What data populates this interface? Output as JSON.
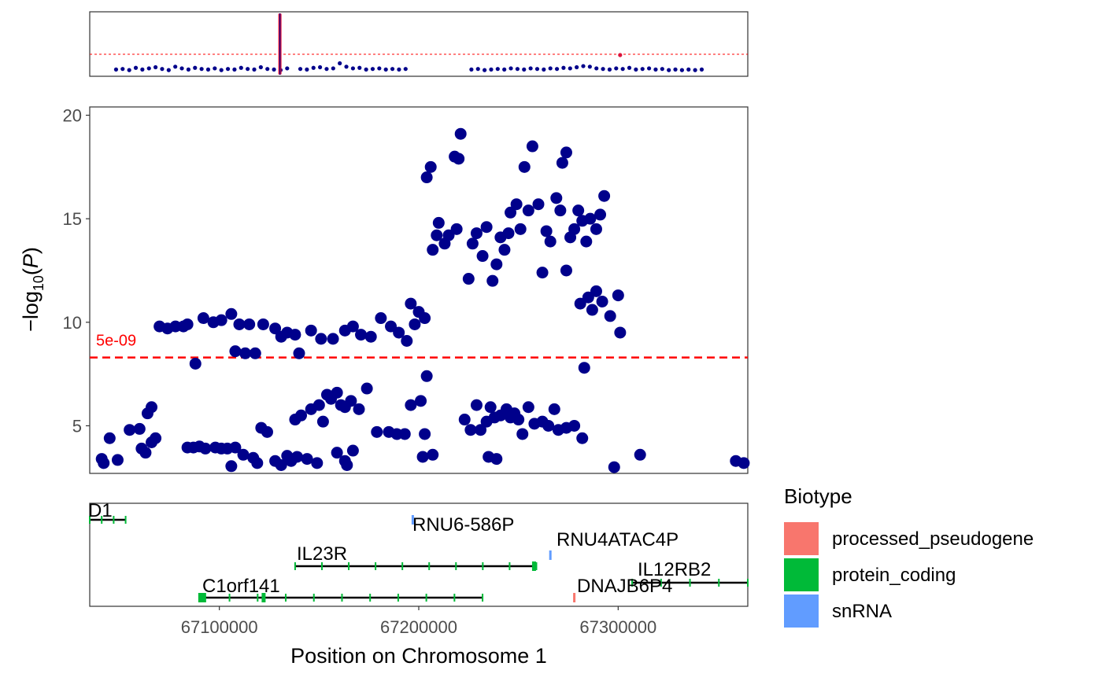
{
  "chart_data": [
    {
      "panel": "overview",
      "type": "scatter",
      "threshold": {
        "color": "#ff0000"
      },
      "point_color": "#00008b",
      "highlight_color": "#dc143c",
      "points": [
        [
          0.04,
          0.05
        ],
        [
          0.05,
          0.06
        ],
        [
          0.06,
          0.04
        ],
        [
          0.07,
          0.08
        ],
        [
          0.08,
          0.05
        ],
        [
          0.09,
          0.07
        ],
        [
          0.1,
          0.09
        ],
        [
          0.11,
          0.06
        ],
        [
          0.12,
          0.04
        ],
        [
          0.13,
          0.1
        ],
        [
          0.14,
          0.07
        ],
        [
          0.15,
          0.05
        ],
        [
          0.16,
          0.08
        ],
        [
          0.17,
          0.06
        ],
        [
          0.18,
          0.05
        ],
        [
          0.19,
          0.07
        ],
        [
          0.2,
          0.04
        ],
        [
          0.21,
          0.06
        ],
        [
          0.22,
          0.05
        ],
        [
          0.23,
          0.08
        ],
        [
          0.24,
          0.06
        ],
        [
          0.25,
          0.05
        ],
        [
          0.26,
          0.09
        ],
        [
          0.27,
          0.06
        ],
        [
          0.28,
          0.05
        ],
        [
          0.29,
          0.04
        ],
        [
          0.3,
          0.07
        ],
        [
          0.32,
          0.06
        ],
        [
          0.33,
          0.05
        ],
        [
          0.34,
          0.08
        ],
        [
          0.35,
          0.09
        ],
        [
          0.36,
          0.06
        ],
        [
          0.37,
          0.07
        ],
        [
          0.38,
          0.16
        ],
        [
          0.39,
          0.1
        ],
        [
          0.4,
          0.07
        ],
        [
          0.41,
          0.08
        ],
        [
          0.42,
          0.05
        ],
        [
          0.43,
          0.06
        ],
        [
          0.44,
          0.07
        ],
        [
          0.45,
          0.05
        ],
        [
          0.46,
          0.06
        ],
        [
          0.47,
          0.05
        ],
        [
          0.48,
          0.06
        ],
        [
          0.58,
          0.05
        ],
        [
          0.59,
          0.06
        ],
        [
          0.6,
          0.04
        ],
        [
          0.61,
          0.05
        ],
        [
          0.62,
          0.06
        ],
        [
          0.63,
          0.05
        ],
        [
          0.64,
          0.07
        ],
        [
          0.65,
          0.06
        ],
        [
          0.66,
          0.05
        ],
        [
          0.67,
          0.07
        ],
        [
          0.68,
          0.06
        ],
        [
          0.69,
          0.05
        ],
        [
          0.7,
          0.07
        ],
        [
          0.71,
          0.06
        ],
        [
          0.72,
          0.08
        ],
        [
          0.73,
          0.07
        ],
        [
          0.74,
          0.09
        ],
        [
          0.75,
          0.11
        ],
        [
          0.76,
          0.1
        ],
        [
          0.77,
          0.07
        ],
        [
          0.78,
          0.06
        ],
        [
          0.79,
          0.05
        ],
        [
          0.8,
          0.07
        ],
        [
          0.81,
          0.06
        ],
        [
          0.82,
          0.08
        ],
        [
          0.83,
          0.05
        ],
        [
          0.84,
          0.06
        ],
        [
          0.85,
          0.07
        ],
        [
          0.86,
          0.05
        ],
        [
          0.87,
          0.06
        ],
        [
          0.88,
          0.04
        ],
        [
          0.89,
          0.05
        ],
        [
          0.9,
          0.04
        ],
        [
          0.91,
          0.05
        ],
        [
          0.92,
          0.04
        ],
        [
          0.93,
          0.05
        ]
      ]
    },
    {
      "panel": "regional",
      "type": "scatter",
      "ylabel": "−log₁₀(P)",
      "yticks": [
        5,
        10,
        15,
        20
      ],
      "ylim": [
        2.7,
        20.4
      ],
      "xlim": [
        67035000,
        67365000
      ],
      "threshold": {
        "value": 8.3,
        "label": "5e-09",
        "color": "#ff0000"
      },
      "point_color": "#00008b",
      "points": [
        [
          67041000,
          3.4
        ],
        [
          67042000,
          3.2
        ],
        [
          67045000,
          4.4
        ],
        [
          67049000,
          3.35
        ],
        [
          67055000,
          4.8
        ],
        [
          67060000,
          4.85
        ],
        [
          67061000,
          3.9
        ],
        [
          67063000,
          3.7
        ],
        [
          67064000,
          5.6
        ],
        [
          67066000,
          5.9
        ],
        [
          67066000,
          4.2
        ],
        [
          67068000,
          4.4
        ],
        [
          67084000,
          3.95
        ],
        [
          67087000,
          3.95
        ],
        [
          67090000,
          4.0
        ],
        [
          67093000,
          3.9
        ],
        [
          67098000,
          3.95
        ],
        [
          67101000,
          3.9
        ],
        [
          67104000,
          3.9
        ],
        [
          67106000,
          3.05
        ],
        [
          67108000,
          3.95
        ],
        [
          67112000,
          3.6
        ],
        [
          67117000,
          3.45
        ],
        [
          67119000,
          3.2
        ],
        [
          67128000,
          3.3
        ],
        [
          67131000,
          3.1
        ],
        [
          67134000,
          3.55
        ],
        [
          67136000,
          3.3
        ],
        [
          67139000,
          3.5
        ],
        [
          67144000,
          3.4
        ],
        [
          67149000,
          3.2
        ],
        [
          67159000,
          3.7
        ],
        [
          67163000,
          3.3
        ],
        [
          67164000,
          3.1
        ],
        [
          67167000,
          3.8
        ],
        [
          67121000,
          4.9
        ],
        [
          67124000,
          4.7
        ],
        [
          67138000,
          5.3
        ],
        [
          67141000,
          5.5
        ],
        [
          67146000,
          5.8
        ],
        [
          67150000,
          6.0
        ],
        [
          67152000,
          5.2
        ],
        [
          67154000,
          6.5
        ],
        [
          67156000,
          6.3
        ],
        [
          67159000,
          6.6
        ],
        [
          67161000,
          6.0
        ],
        [
          67163000,
          5.9
        ],
        [
          67166000,
          6.2
        ],
        [
          67170000,
          5.8
        ],
        [
          67174000,
          6.8
        ],
        [
          67179000,
          4.7
        ],
        [
          67185000,
          4.7
        ],
        [
          67189000,
          4.6
        ],
        [
          67193000,
          4.6
        ],
        [
          67196000,
          6.0
        ],
        [
          67201000,
          6.2
        ],
        [
          67203000,
          4.6
        ],
        [
          67204000,
          7.4
        ],
        [
          67202000,
          3.5
        ],
        [
          67207000,
          3.6
        ],
        [
          67070000,
          9.8
        ],
        [
          67074000,
          9.7
        ],
        [
          67078000,
          9.8
        ],
        [
          67082000,
          9.8
        ],
        [
          67084000,
          9.9
        ],
        [
          67092000,
          10.2
        ],
        [
          67097000,
          10.0
        ],
        [
          67101000,
          10.1
        ],
        [
          67106000,
          10.4
        ],
        [
          67110000,
          9.9
        ],
        [
          67115000,
          9.9
        ],
        [
          67122000,
          9.9
        ],
        [
          67108000,
          8.6
        ],
        [
          67113000,
          8.5
        ],
        [
          67118000,
          8.5
        ],
        [
          67088000,
          8.0
        ],
        [
          67128000,
          9.7
        ],
        [
          67131000,
          9.3
        ],
        [
          67134000,
          9.5
        ],
        [
          67138000,
          9.4
        ],
        [
          67140000,
          8.5
        ],
        [
          67146000,
          9.6
        ],
        [
          67151000,
          9.2
        ],
        [
          67157000,
          9.2
        ],
        [
          67163000,
          9.6
        ],
        [
          67167000,
          9.8
        ],
        [
          67171000,
          9.4
        ],
        [
          67176000,
          9.3
        ],
        [
          67181000,
          10.2
        ],
        [
          67186000,
          9.8
        ],
        [
          67190000,
          9.5
        ],
        [
          67194000,
          9.1
        ],
        [
          67198000,
          9.9
        ],
        [
          67200000,
          10.5
        ],
        [
          67203000,
          10.2
        ],
        [
          67196000,
          10.9
        ],
        [
          67207000,
          13.5
        ],
        [
          67209000,
          14.2
        ],
        [
          67210000,
          14.8
        ],
        [
          67213000,
          13.8
        ],
        [
          67204000,
          17.0
        ],
        [
          67206000,
          17.5
        ],
        [
          67215000,
          14.2
        ],
        [
          67218000,
          18.0
        ],
        [
          67220000,
          17.9
        ],
        [
          67221000,
          19.1
        ],
        [
          67219000,
          14.5
        ],
        [
          67225000,
          12.1
        ],
        [
          67227000,
          13.8
        ],
        [
          67229000,
          14.3
        ],
        [
          67232000,
          13.2
        ],
        [
          67234000,
          14.6
        ],
        [
          67237000,
          12.0
        ],
        [
          67239000,
          12.8
        ],
        [
          67241000,
          14.1
        ],
        [
          67243000,
          13.5
        ],
        [
          67245000,
          14.3
        ],
        [
          67246000,
          15.3
        ],
        [
          67249000,
          15.7
        ],
        [
          67251000,
          14.5
        ],
        [
          67255000,
          15.4
        ],
        [
          67253000,
          17.5
        ],
        [
          67257000,
          18.5
        ],
        [
          67260000,
          15.7
        ],
        [
          67262000,
          12.4
        ],
        [
          67264000,
          14.4
        ],
        [
          67266000,
          13.9
        ],
        [
          67269000,
          16.0
        ],
        [
          67271000,
          15.4
        ],
        [
          67272000,
          17.7
        ],
        [
          67274000,
          18.2
        ],
        [
          67276000,
          14.1
        ],
        [
          67278000,
          14.5
        ],
        [
          67280000,
          15.4
        ],
        [
          67282000,
          14.9
        ],
        [
          67284000,
          13.9
        ],
        [
          67286000,
          15.0
        ],
        [
          67289000,
          14.5
        ],
        [
          67291000,
          15.2
        ],
        [
          67293000,
          16.1
        ],
        [
          67274000,
          12.5
        ],
        [
          67281000,
          10.9
        ],
        [
          67285000,
          11.2
        ],
        [
          67287000,
          10.6
        ],
        [
          67289000,
          11.5
        ],
        [
          67292000,
          11.0
        ],
        [
          67296000,
          10.3
        ],
        [
          67300000,
          11.3
        ],
        [
          67301000,
          9.5
        ],
        [
          67283000,
          7.8
        ],
        [
          67223000,
          5.3
        ],
        [
          67226000,
          4.8
        ],
        [
          67229000,
          6.0
        ],
        [
          67231000,
          4.8
        ],
        [
          67234000,
          5.2
        ],
        [
          67236000,
          5.9
        ],
        [
          67238000,
          5.4
        ],
        [
          67241000,
          5.5
        ],
        [
          67244000,
          5.8
        ],
        [
          67246000,
          5.4
        ],
        [
          67248000,
          5.6
        ],
        [
          67250000,
          5.3
        ],
        [
          67252000,
          4.6
        ],
        [
          67255000,
          5.9
        ],
        [
          67258000,
          5.1
        ],
        [
          67262000,
          5.2
        ],
        [
          67265000,
          5.0
        ],
        [
          67268000,
          5.8
        ],
        [
          67270000,
          4.8
        ],
        [
          67274000,
          4.9
        ],
        [
          67278000,
          5.0
        ],
        [
          67282000,
          4.4
        ],
        [
          67235000,
          3.5
        ],
        [
          67239000,
          3.4
        ],
        [
          67298000,
          3.0
        ],
        [
          67311000,
          3.6
        ],
        [
          67359000,
          3.3
        ],
        [
          67363000,
          3.2
        ]
      ]
    },
    {
      "panel": "genes",
      "type": "gene-track",
      "xlabel": "Position on Chromosome 1",
      "xticks": [
        "67100000",
        "67200000",
        "67300000"
      ],
      "xtick_values": [
        67100000,
        67200000,
        67300000
      ],
      "xlim": [
        67035000,
        67365000
      ],
      "genes": [
        {
          "name": "D1",
          "biotype": "protein_coding",
          "start": 67035000,
          "end": 67053000,
          "row": 0
        },
        {
          "name": "RNU6-586P",
          "biotype": "snRNA",
          "start": 67197000,
          "end": 67197000,
          "row": 0
        },
        {
          "name": "RNU4ATAC4P",
          "biotype": "snRNA",
          "start": 67266000,
          "end": 67266000,
          "row": 1
        },
        {
          "name": "IL23R",
          "biotype": "protein_coding",
          "start": 67138000,
          "end": 67259000,
          "row": 2
        },
        {
          "name": "IL12RB2",
          "biotype": "protein_coding",
          "start": 67307000,
          "end": 67365000,
          "row": 3
        },
        {
          "name": "C1orf141",
          "biotype": "protein_coding",
          "start": 67091000,
          "end": 67232000,
          "row": 4
        },
        {
          "name": "DNAJB6P4",
          "biotype": "processed_pseudogene",
          "start": 67278000,
          "end": 67278000,
          "row": 4
        }
      ]
    }
  ],
  "legend": {
    "title": "Biotype",
    "items": [
      {
        "label": "processed_pseudogene",
        "color": "#f8766d"
      },
      {
        "label": "protein_coding",
        "color": "#00ba38"
      },
      {
        "label": "snRNA",
        "color": "#619cff"
      }
    ]
  }
}
